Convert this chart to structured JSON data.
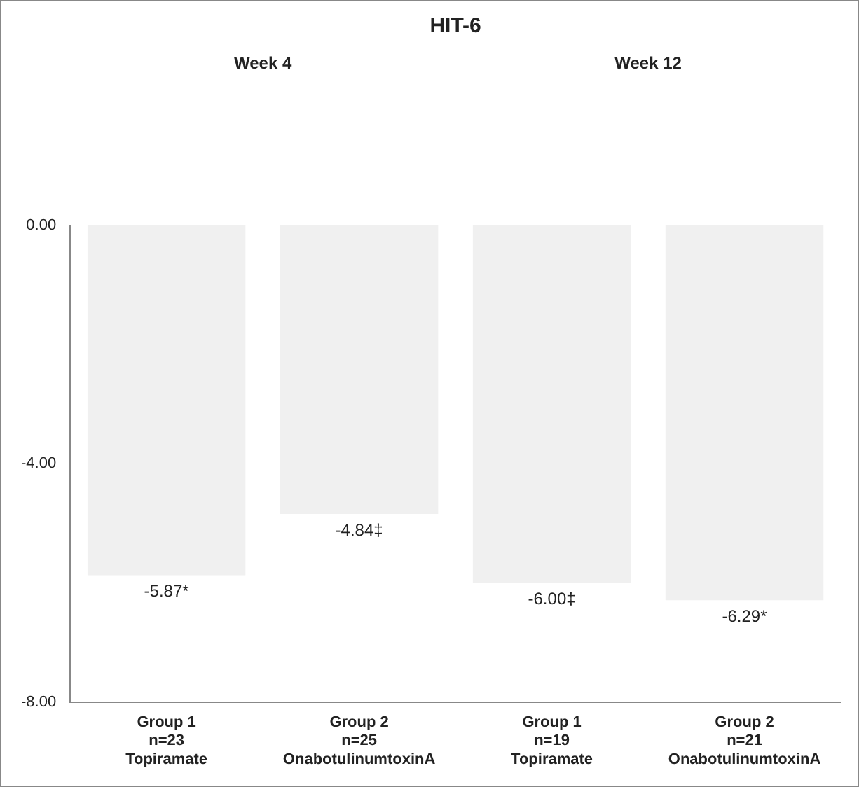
{
  "chart_data": {
    "type": "bar",
    "title": "HIT-6",
    "categories": [
      "Group 1\nn=23\nTopiramate",
      "Group 2\nn=25\nOnabotulinumtoxinA",
      "Group 1\nn=19\nTopiramate",
      "Group 2\nn=21\nOnabotulinumtoxinA"
    ],
    "values": [
      -5.87,
      -4.84,
      -6.0,
      -6.29
    ],
    "value_labels": [
      "-5.87*",
      "-4.84‡",
      "-6.00‡",
      "-6.29*"
    ],
    "color": "#f0f0f0",
    "ylim": [
      -8,
      0
    ],
    "yticks": [
      {
        "value": 0,
        "label": "0.00"
      },
      {
        "value": -4,
        "label": "-4.00"
      },
      {
        "value": -8,
        "label": "-8.00"
      }
    ],
    "annotations": [
      "Week 4",
      "Week 12"
    ],
    "grid": false,
    "legend": false
  }
}
